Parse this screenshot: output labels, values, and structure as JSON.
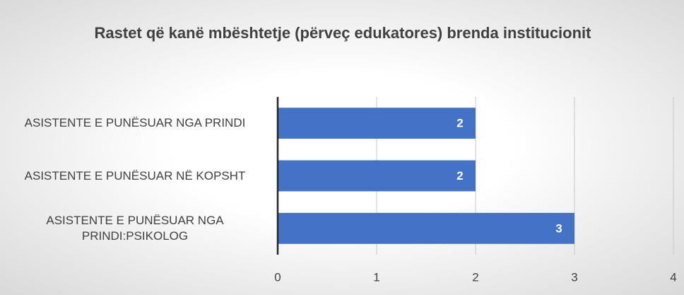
{
  "chart_data": {
    "type": "bar",
    "orientation": "horizontal",
    "title": "Rastet që kanë mbështetje (përveç edukatores) brenda institucionit",
    "categories": [
      "ASISTENTE E PUNËSUAR NGA PRINDI",
      "ASISTENTE E PUNËSUAR NË KOPSHT",
      "ASISTENTE E PUNËSUAR NGA PRINDI:PSIKOLOG"
    ],
    "values": [
      2,
      2,
      3
    ],
    "color": "#4472c4",
    "xlim": [
      0,
      4
    ],
    "xticks": [
      0,
      1,
      2,
      3,
      4
    ],
    "grid": true
  }
}
